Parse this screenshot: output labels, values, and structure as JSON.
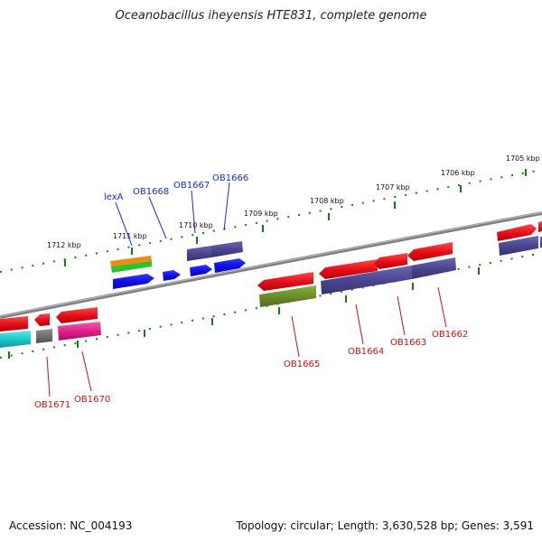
{
  "title": "Oceanobacillus iheyensis HTE831, complete genome",
  "footer": {
    "accession": "Accession: NC_004193",
    "topology": "Topology: circular; Length: 3,630,528 bp; Genes: 3,591"
  },
  "scale_labels": [
    "1705 kbp",
    "1706 kbp",
    "1707 kbp",
    "1708 kbp",
    "1709 kbp",
    "1710 kbp",
    "1711 kbp",
    "1712 kbp"
  ],
  "gene_labels": [
    "lexA",
    "OB1668",
    "OB1667",
    "OB1666",
    "OB1665",
    "OB1664",
    "OB1663",
    "OB1662",
    "OB1671",
    "OB1670"
  ],
  "colors": {
    "forward_red": "#e8101a",
    "reverse_blue": "#1010e8",
    "slate_blue": "#4a4690",
    "olive": "#6b8c2a",
    "cyan": "#1cc8c8",
    "magenta": "#e0208a",
    "gray": "#707070",
    "orange": "#f08a10",
    "green": "#30c030",
    "tick_green": "#1a7a1a",
    "blue_label": "#1a2bcf",
    "red_label": "#cc1111"
  }
}
